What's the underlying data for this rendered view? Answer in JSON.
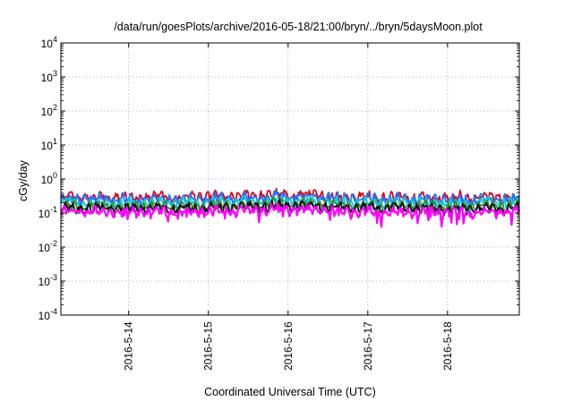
{
  "chart_data": {
    "type": "line",
    "title": "/data/run/goesPlots/archive/2016-05-18/21:00/bryn/../bryn/5daysMoon.plot",
    "xlabel": "Coordinated Universal Time (UTC)",
    "ylabel": "cGy/day",
    "yscale": "log",
    "ylim": [
      0.0001,
      10000
    ],
    "xlim": [
      13.15,
      18.9
    ],
    "x_unit": "day of May 2016",
    "grid": true,
    "y_ticks": [
      {
        "value": 0.0001,
        "base": "10",
        "exp": "-4"
      },
      {
        "value": 0.001,
        "base": "10",
        "exp": "-3"
      },
      {
        "value": 0.01,
        "base": "10",
        "exp": "-2"
      },
      {
        "value": 0.1,
        "base": "10",
        "exp": "-1"
      },
      {
        "value": 1,
        "base": "10",
        "exp": "0"
      },
      {
        "value": 10,
        "base": "10",
        "exp": "1"
      },
      {
        "value": 100,
        "base": "10",
        "exp": "2"
      },
      {
        "value": 1000,
        "base": "10",
        "exp": "3"
      },
      {
        "value": 10000,
        "base": "10",
        "exp": "4"
      }
    ],
    "x_ticks": [
      {
        "value": 14,
        "label": "2016-5-14"
      },
      {
        "value": 15,
        "label": "2016-5-15"
      },
      {
        "value": 16,
        "label": "2016-5-16"
      },
      {
        "value": 17,
        "label": "2016-5-17"
      },
      {
        "value": 18,
        "label": "2016-5-18"
      }
    ],
    "series": [
      {
        "color": "#e0001c",
        "base": 0.3,
        "amp": 0.1,
        "dip": 0.7
      },
      {
        "color": "#1e78ff",
        "base": 0.26,
        "amp": 0.09,
        "dip": 0.62
      },
      {
        "color": "#17c9c9",
        "base": 0.2,
        "amp": 0.07,
        "dip": 0.8
      },
      {
        "color": "#3a8c2e",
        "base": 0.16,
        "amp": 0.05,
        "dip": 0.85
      },
      {
        "color": "#111111",
        "base": 0.14,
        "amp": 0.04,
        "dip": 0.88
      },
      {
        "color": "#ff00ff",
        "base": 0.11,
        "amp": 0.03,
        "dip": 0.4
      }
    ]
  }
}
